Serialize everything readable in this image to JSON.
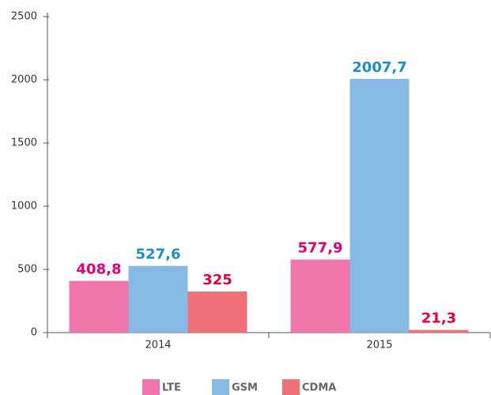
{
  "chart_data": {
    "type": "bar",
    "categories": [
      "2014",
      "2015"
    ],
    "series": [
      {
        "name": "LTE",
        "color": "#f075ab",
        "label_color": "#e2007a",
        "values": [
          408.8,
          577.9
        ],
        "value_labels": [
          "408,8",
          "577,9"
        ]
      },
      {
        "name": "GSM",
        "color": "#86b9e3",
        "label_color": "#1a8fd0",
        "values": [
          527.6,
          2007.7
        ],
        "value_labels": [
          "527,6",
          "2007,7"
        ]
      },
      {
        "name": "CDMA",
        "color": "#f07078",
        "label_color": "#e2003e",
        "values": [
          325,
          21.3
        ],
        "value_labels": [
          "325",
          "21,3"
        ]
      }
    ],
    "ylim": [
      0,
      2500
    ],
    "yticks": [
      0,
      500,
      1000,
      1500,
      2000,
      2500
    ],
    "grid": false,
    "legend": "bottom"
  }
}
